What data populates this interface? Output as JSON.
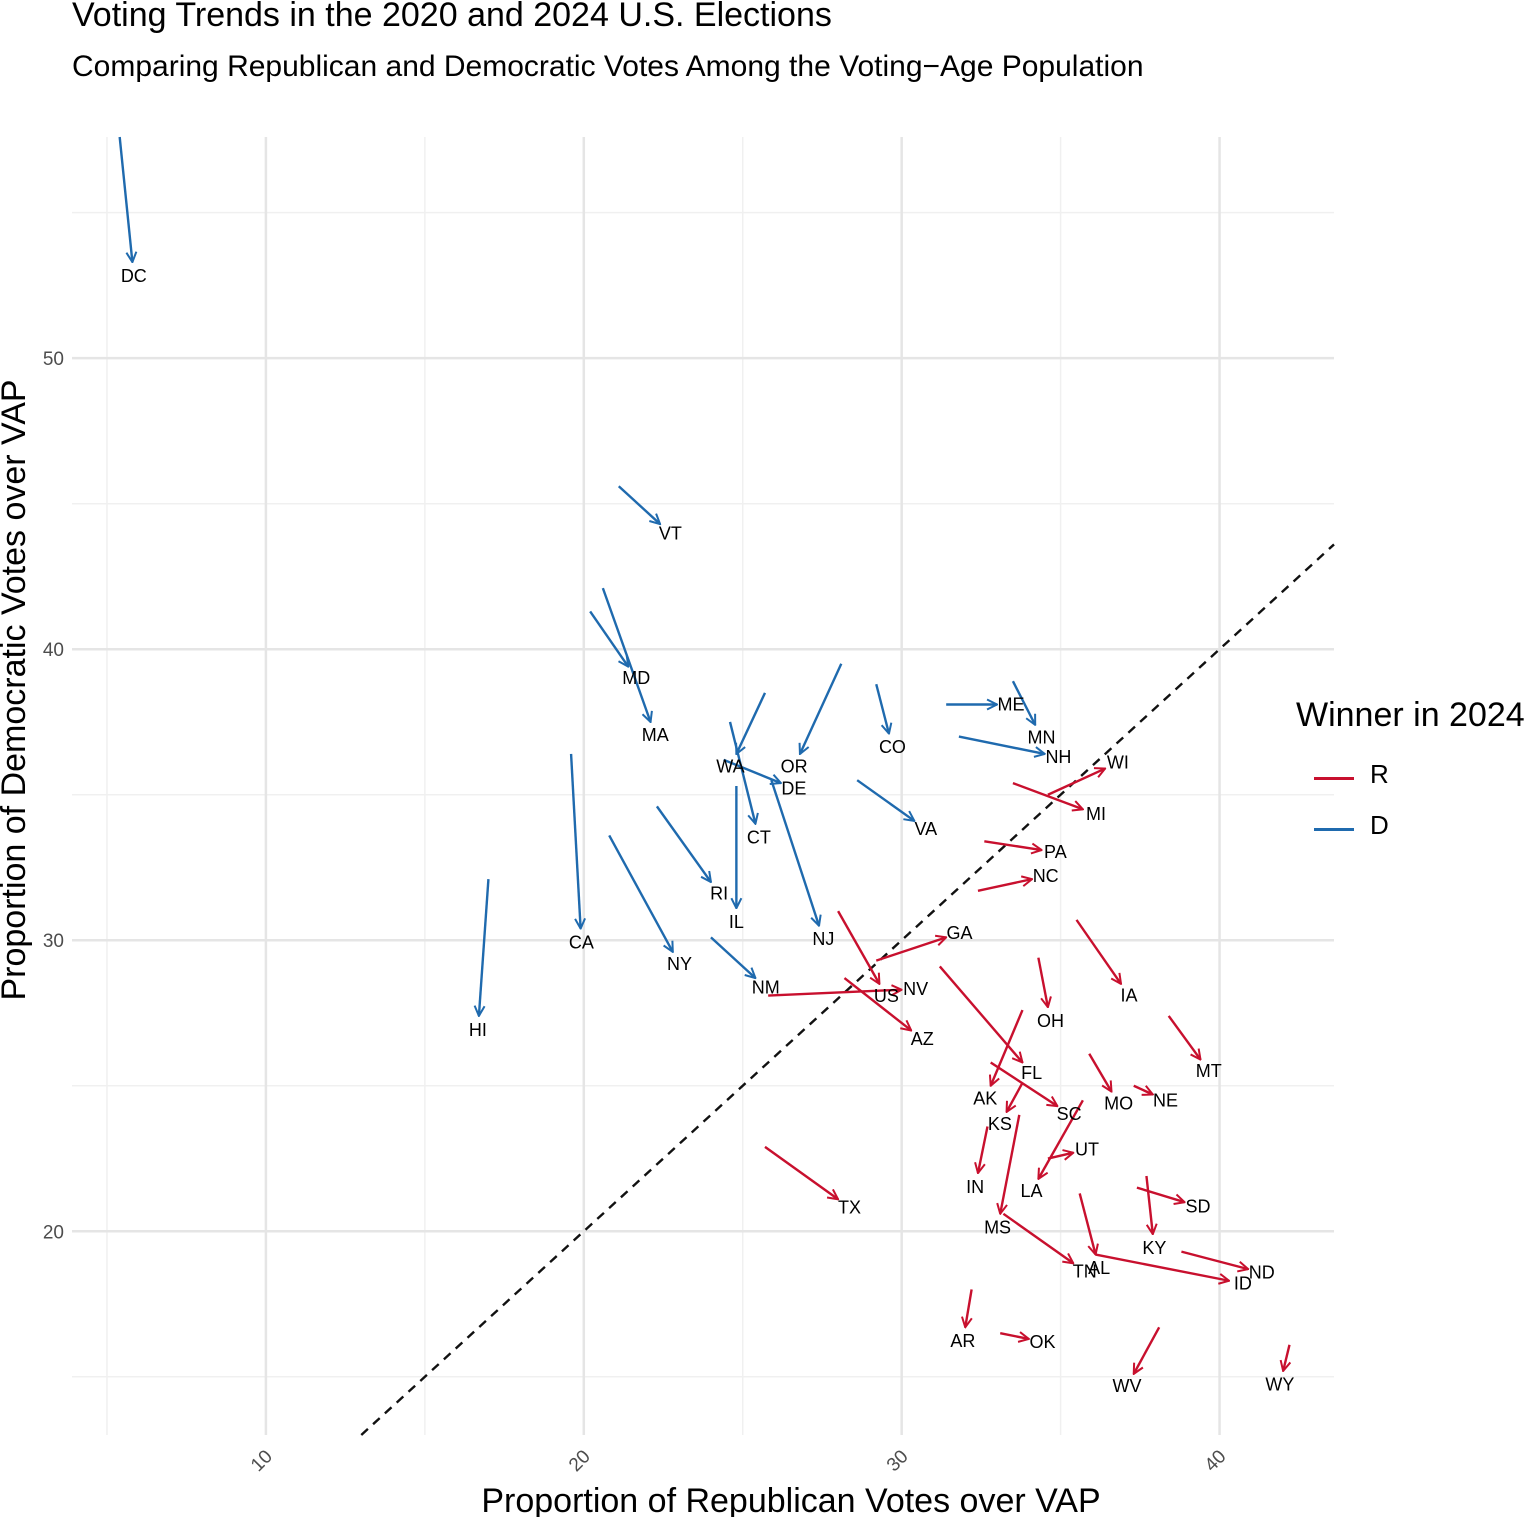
{
  "title": "Voting Trends in the 2020 and 2024 U.S. Elections",
  "subtitle": "Comparing Republican and Democratic Votes Among the Voting−Age Population",
  "legend": {
    "title": "Winner in 2024",
    "items": [
      {
        "key": "R",
        "label": "R",
        "color": "#C8102E"
      },
      {
        "key": "D",
        "label": "D",
        "color": "#1F6AAE"
      }
    ]
  },
  "chart_data": {
    "type": "scatter",
    "mark": "arrow",
    "xlabel": "Proportion of Republican Votes over VAP",
    "ylabel": "Proportion of Democratic Votes over VAP",
    "xlim": [
      3.9,
      43.6
    ],
    "ylim": [
      13.0,
      57.6
    ],
    "x_ticks": [
      10,
      20,
      30,
      40
    ],
    "y_ticks": [
      20,
      30,
      40,
      50
    ],
    "reference_line": {
      "style": "dashed",
      "equation": "y = x"
    },
    "grid": true,
    "legend_position": "right",
    "states": [
      {
        "name": "DC",
        "winner": "D",
        "x2020": 5.4,
        "y2020": 57.6,
        "x2024": 5.8,
        "y2024": 53.3
      },
      {
        "name": "VT",
        "winner": "D",
        "x2020": 21.1,
        "y2020": 45.6,
        "x2024": 22.4,
        "y2024": 44.3
      },
      {
        "name": "MD",
        "winner": "D",
        "x2020": 20.2,
        "y2020": 41.3,
        "x2024": 21.4,
        "y2024": 39.4
      },
      {
        "name": "MA",
        "winner": "D",
        "x2020": 20.6,
        "y2020": 42.1,
        "x2024": 22.1,
        "y2024": 37.5
      },
      {
        "name": "WA",
        "winner": "D",
        "x2020": 25.7,
        "y2020": 38.5,
        "x2024": 24.8,
        "y2024": 36.4
      },
      {
        "name": "OR",
        "winner": "D",
        "x2020": 28.1,
        "y2020": 39.5,
        "x2024": 26.8,
        "y2024": 36.4
      },
      {
        "name": "CO",
        "winner": "D",
        "x2020": 29.2,
        "y2020": 38.8,
        "x2024": 29.6,
        "y2024": 37.1
      },
      {
        "name": "ME",
        "winner": "D",
        "x2020": 31.4,
        "y2020": 38.1,
        "x2024": 33.0,
        "y2024": 38.1
      },
      {
        "name": "MN",
        "winner": "D",
        "x2020": 33.5,
        "y2020": 38.9,
        "x2024": 34.2,
        "y2024": 37.4
      },
      {
        "name": "NH",
        "winner": "D",
        "x2020": 31.8,
        "y2020": 37.0,
        "x2024": 34.5,
        "y2024": 36.4
      },
      {
        "name": "DE",
        "winner": "D",
        "x2020": 24.4,
        "y2020": 36.2,
        "x2024": 26.2,
        "y2024": 35.4
      },
      {
        "name": "CT",
        "winner": "D",
        "x2020": 24.6,
        "y2020": 37.5,
        "x2024": 25.4,
        "y2024": 34.0
      },
      {
        "name": "VA",
        "winner": "D",
        "x2020": 28.6,
        "y2020": 35.5,
        "x2024": 30.4,
        "y2024": 34.1
      },
      {
        "name": "RI",
        "winner": "D",
        "x2020": 22.3,
        "y2020": 34.6,
        "x2024": 24.0,
        "y2024": 32.0
      },
      {
        "name": "IL",
        "winner": "D",
        "x2020": 24.8,
        "y2020": 35.3,
        "x2024": 24.8,
        "y2024": 31.1
      },
      {
        "name": "NJ",
        "winner": "D",
        "x2020": 25.9,
        "y2020": 35.5,
        "x2024": 27.4,
        "y2024": 30.5
      },
      {
        "name": "CA",
        "winner": "D",
        "x2020": 19.6,
        "y2020": 36.4,
        "x2024": 19.9,
        "y2024": 30.4
      },
      {
        "name": "NY",
        "winner": "D",
        "x2020": 20.8,
        "y2020": 33.6,
        "x2024": 22.8,
        "y2024": 29.6
      },
      {
        "name": "NM",
        "winner": "D",
        "x2020": 24.0,
        "y2020": 30.1,
        "x2024": 25.4,
        "y2024": 28.7
      },
      {
        "name": "HI",
        "winner": "D",
        "x2020": 17.0,
        "y2020": 32.1,
        "x2024": 16.7,
        "y2024": 27.4
      },
      {
        "name": "WI",
        "winner": "R",
        "x2020": 34.6,
        "y2020": 35.0,
        "x2024": 36.4,
        "y2024": 35.9
      },
      {
        "name": "MI",
        "winner": "R",
        "x2020": 33.5,
        "y2020": 35.4,
        "x2024": 35.7,
        "y2024": 34.5
      },
      {
        "name": "PA",
        "winner": "R",
        "x2020": 32.6,
        "y2020": 33.4,
        "x2024": 34.4,
        "y2024": 33.1
      },
      {
        "name": "NC",
        "winner": "R",
        "x2020": 32.4,
        "y2020": 31.7,
        "x2024": 34.1,
        "y2024": 32.1
      },
      {
        "name": "GA",
        "winner": "R",
        "x2020": 29.2,
        "y2020": 29.3,
        "x2024": 31.4,
        "y2024": 30.1
      },
      {
        "name": "US",
        "winner": "R",
        "x2020": 28.0,
        "y2020": 31.0,
        "x2024": 29.3,
        "y2024": 28.5
      },
      {
        "name": "NV",
        "winner": "R",
        "x2020": 25.8,
        "y2020": 28.1,
        "x2024": 30.0,
        "y2024": 28.3
      },
      {
        "name": "AZ",
        "winner": "R",
        "x2020": 28.2,
        "y2020": 28.7,
        "x2024": 30.3,
        "y2024": 26.9
      },
      {
        "name": "IA",
        "winner": "R",
        "x2020": 35.5,
        "y2020": 30.7,
        "x2024": 36.9,
        "y2024": 28.5
      },
      {
        "name": "OH",
        "winner": "R",
        "x2020": 34.3,
        "y2020": 29.4,
        "x2024": 34.6,
        "y2024": 27.7
      },
      {
        "name": "MT",
        "winner": "R",
        "x2020": 38.4,
        "y2020": 27.4,
        "x2024": 39.4,
        "y2024": 25.9
      },
      {
        "name": "FL",
        "winner": "R",
        "x2020": 31.2,
        "y2020": 29.1,
        "x2024": 33.8,
        "y2024": 25.8
      },
      {
        "name": "AK",
        "winner": "R",
        "x2020": 33.8,
        "y2020": 27.6,
        "x2024": 32.8,
        "y2024": 25.0
      },
      {
        "name": "MO",
        "winner": "R",
        "x2020": 35.9,
        "y2020": 26.1,
        "x2024": 36.6,
        "y2024": 24.8
      },
      {
        "name": "NE",
        "winner": "R",
        "x2020": 37.3,
        "y2020": 25.0,
        "x2024": 37.9,
        "y2024": 24.7
      },
      {
        "name": "KS",
        "winner": "R",
        "x2020": 33.8,
        "y2020": 25.1,
        "x2024": 33.3,
        "y2024": 24.1
      },
      {
        "name": "SC",
        "winner": "R",
        "x2020": 32.8,
        "y2020": 25.8,
        "x2024": 34.9,
        "y2024": 24.3
      },
      {
        "name": "UT",
        "winner": "R",
        "x2020": 34.6,
        "y2020": 22.5,
        "x2024": 35.4,
        "y2024": 22.7
      },
      {
        "name": "LA",
        "winner": "R",
        "x2020": 35.7,
        "y2020": 24.5,
        "x2024": 34.3,
        "y2024": 21.8
      },
      {
        "name": "IN",
        "winner": "R",
        "x2020": 32.7,
        "y2020": 23.6,
        "x2024": 32.4,
        "y2024": 22.0
      },
      {
        "name": "SD",
        "winner": "R",
        "x2020": 37.4,
        "y2020": 21.5,
        "x2024": 38.9,
        "y2024": 21.0
      },
      {
        "name": "KY",
        "winner": "R",
        "x2020": 37.7,
        "y2020": 21.9,
        "x2024": 37.9,
        "y2024": 19.9
      },
      {
        "name": "TX",
        "winner": "R",
        "x2020": 25.7,
        "y2020": 22.9,
        "x2024": 28.0,
        "y2024": 21.1
      },
      {
        "name": "MS",
        "winner": "R",
        "x2020": 33.7,
        "y2020": 24.0,
        "x2024": 33.1,
        "y2024": 20.6
      },
      {
        "name": "AL",
        "winner": "R",
        "x2020": 35.6,
        "y2020": 21.3,
        "x2024": 36.1,
        "y2024": 19.2
      },
      {
        "name": "TN",
        "winner": "R",
        "x2020": 33.2,
        "y2020": 20.6,
        "x2024": 35.4,
        "y2024": 18.9
      },
      {
        "name": "ND",
        "winner": "R",
        "x2020": 38.8,
        "y2020": 19.3,
        "x2024": 40.9,
        "y2024": 18.7
      },
      {
        "name": "ID",
        "winner": "R",
        "x2020": 36.1,
        "y2020": 19.2,
        "x2024": 40.3,
        "y2024": 18.3
      },
      {
        "name": "AR",
        "winner": "R",
        "x2020": 32.2,
        "y2020": 18.0,
        "x2024": 32.0,
        "y2024": 16.7
      },
      {
        "name": "OK",
        "winner": "R",
        "x2020": 33.1,
        "y2020": 16.5,
        "x2024": 34.0,
        "y2024": 16.3
      },
      {
        "name": "WV",
        "winner": "R",
        "x2020": 38.1,
        "y2020": 16.7,
        "x2024": 37.3,
        "y2024": 15.1
      },
      {
        "name": "WY",
        "winner": "R",
        "x2020": 42.2,
        "y2020": 16.1,
        "x2024": 42.0,
        "y2024": 15.2
      }
    ]
  }
}
